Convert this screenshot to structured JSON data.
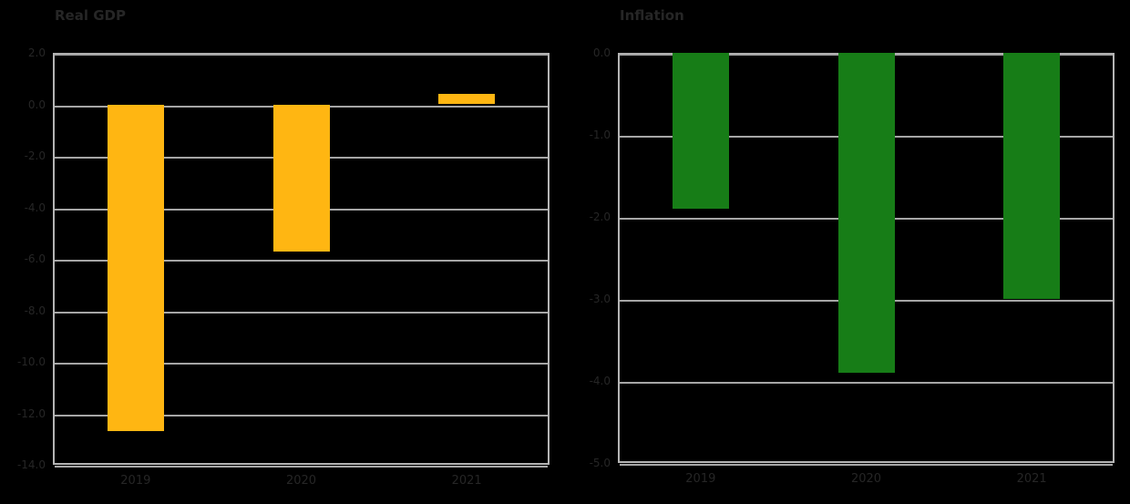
{
  "page": {
    "background": "#000000",
    "text_color": "#262626",
    "grid_color": "#A6A6A6",
    "border_color": "#B5B5B5"
  },
  "chart_data": [
    {
      "type": "bar",
      "title": "Real GDP",
      "categories": [
        "2019",
        "2020",
        "2021"
      ],
      "values": [
        -12.7,
        -5.7,
        0.4
      ],
      "bar_color": "#FFB612",
      "xlabel": "",
      "ylabel": "",
      "ylim": [
        2,
        -14
      ],
      "y_tick_labels": [
        "2.0",
        "0.0",
        "-2.0",
        "-4.0",
        "-6.0",
        "-8.0",
        "-10.0",
        "-12.0",
        "-14.0"
      ],
      "grid": "horizontal",
      "legend": "none"
    },
    {
      "type": "bar",
      "title": "Inflation",
      "categories": [
        "2019",
        "2020",
        "2021"
      ],
      "values": [
        -1.9,
        -3.9,
        -3.0
      ],
      "bar_color": "#177D17",
      "xlabel": "",
      "ylabel": "",
      "ylim": [
        0,
        -5
      ],
      "y_tick_labels": [
        "0.0",
        "-1.0",
        "-2.0",
        "-3.0",
        "-4.0",
        "-5.0"
      ],
      "grid": "horizontal",
      "legend": "none"
    }
  ]
}
